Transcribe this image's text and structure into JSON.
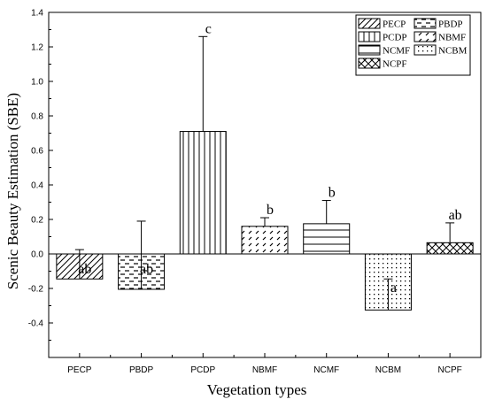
{
  "chart_data": {
    "type": "bar",
    "xlabel": "Vegetation types",
    "ylabel": "Scenic Beauty Estimation (SBE)",
    "ylim": [
      -0.6,
      1.4
    ],
    "yticks": [
      "-0.4",
      "-0.2",
      "0.0",
      "0.2",
      "0.4",
      "0.6",
      "0.8",
      "1.0",
      "1.2",
      "1.4"
    ],
    "categories": [
      "PECP",
      "PBDP",
      "PCDP",
      "NBMF",
      "NCMF",
      "NCBM",
      "NCPF"
    ],
    "values": [
      -0.145,
      -0.205,
      0.71,
      0.16,
      0.175,
      -0.325,
      0.065
    ],
    "error_bars": [
      0.025,
      0.19,
      1.26,
      0.21,
      0.31,
      -0.145,
      0.18
    ],
    "significance_labels": [
      "ab",
      "ab",
      "c",
      "b",
      "b",
      "a",
      "ab"
    ],
    "hatch_patterns": [
      "diagonal",
      "dashes",
      "vertical",
      "diagonal-dashes",
      "horizontal",
      "dots",
      "crosshatch"
    ],
    "legend": {
      "placement": "top-right",
      "entries": [
        "PECP",
        "PBDP",
        "PCDP",
        "NBMF",
        "NCMF",
        "NCBM",
        "NCPF"
      ]
    },
    "grid": false
  }
}
